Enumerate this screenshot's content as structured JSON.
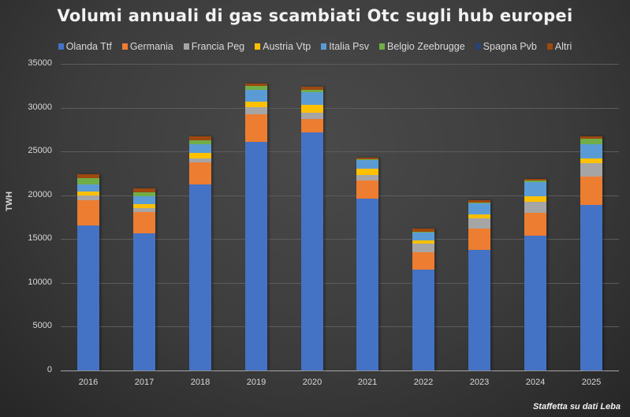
{
  "chart_data": {
    "type": "bar",
    "stacked": true,
    "title": "Volumi annuali di gas scambiati Otc sugli hub europei",
    "xlabel": "",
    "ylabel": "TWH",
    "ylim": [
      0,
      35000
    ],
    "yticks": [
      0,
      5000,
      10000,
      15000,
      20000,
      25000,
      30000,
      35000
    ],
    "grid": true,
    "legend_position": "top",
    "categories": [
      "2016",
      "2017",
      "2018",
      "2019",
      "2020",
      "2021",
      "2022",
      "2023",
      "2024",
      "2025"
    ],
    "series": [
      {
        "name": "Olanda Ttf",
        "color": "#4472c4",
        "values": [
          16550,
          15650,
          21200,
          26100,
          27150,
          19600,
          11500,
          13750,
          15450,
          18900
        ]
      },
      {
        "name": "Germania",
        "color": "#ed7d31",
        "values": [
          2900,
          2450,
          2600,
          3150,
          1600,
          2050,
          2000,
          2450,
          2600,
          3250
        ]
      },
      {
        "name": "Francia Peg",
        "color": "#a5a5a5",
        "values": [
          550,
          450,
          450,
          800,
          700,
          650,
          1000,
          1150,
          1250,
          1550
        ]
      },
      {
        "name": "Austria Vtp",
        "color": "#ffc000",
        "values": [
          450,
          450,
          550,
          650,
          900,
          700,
          350,
          450,
          650,
          550
        ]
      },
      {
        "name": "Italia Psv",
        "color": "#5b9bd5",
        "values": [
          800,
          900,
          1000,
          1350,
          1450,
          1000,
          900,
          1250,
          1550,
          1550
        ]
      },
      {
        "name": "Belgio Zeebrugge",
        "color": "#70ad47",
        "values": [
          700,
          450,
          450,
          450,
          250,
          100,
          100,
          100,
          200,
          700
        ]
      },
      {
        "name": "Spagna Pvb",
        "color": "#264478",
        "values": [
          0,
          0,
          0,
          0,
          0,
          0,
          0,
          0,
          0,
          0
        ]
      },
      {
        "name": "Altri",
        "color": "#9e480e",
        "values": [
          450,
          450,
          450,
          250,
          350,
          200,
          350,
          250,
          200,
          200
        ]
      }
    ],
    "annotations": [
      "Staffetta su dati Leba"
    ]
  },
  "source_note": "Staffetta su dati Leba"
}
